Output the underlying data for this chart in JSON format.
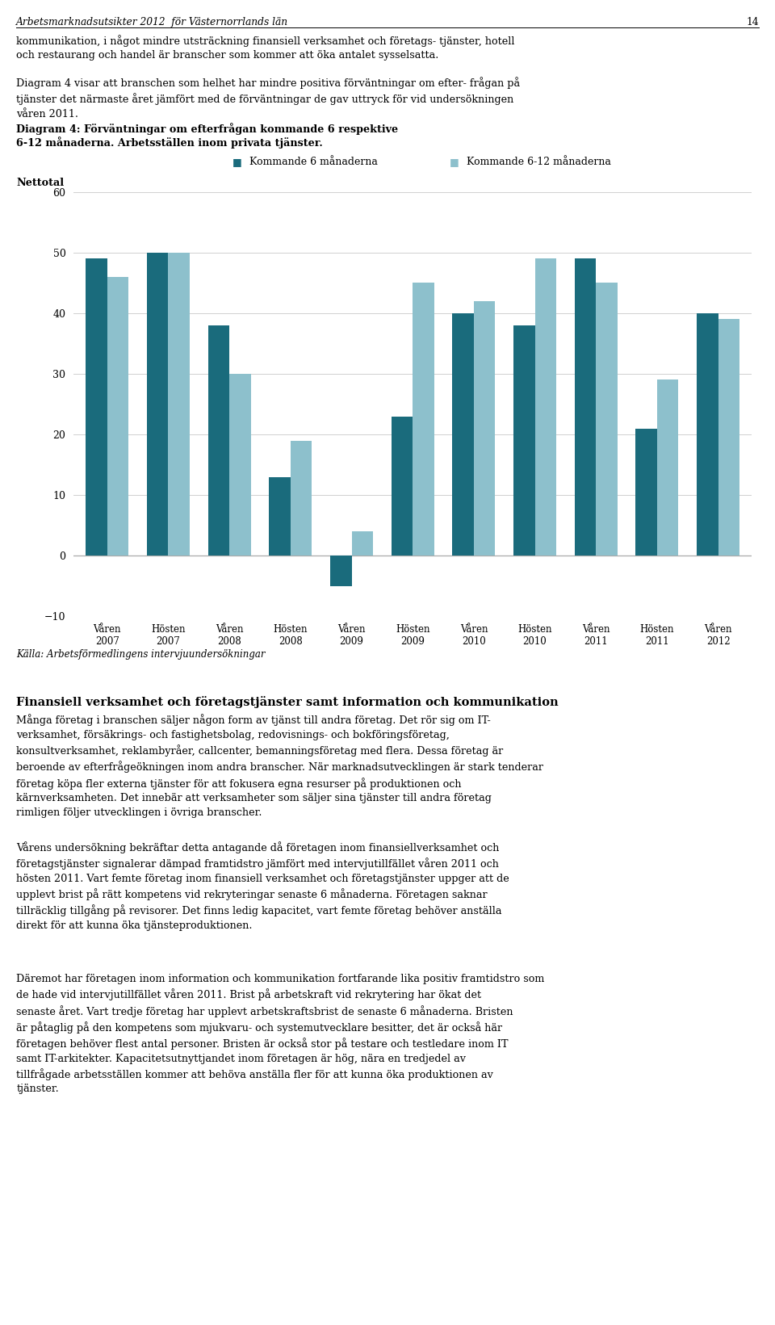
{
  "title_line1": "Diagram 4: Förväntningar om efterfrågan kommande 6 respektive",
  "title_line2": "6-12 månaderna. Arbetsställen inom privata tjänster.",
  "header": "Arbetsmarknadsutsikter 2012  för Västernorrlands län",
  "page_number": "14",
  "ylabel": "Nettotal",
  "source": "Källa: Arbetsförmedlingens intervjuundersökningar",
  "legend_dark": "Kommande 6 månaderna",
  "legend_light": "Kommande 6-12 månaderna",
  "categories": [
    "Våren\n2007",
    "Hösten\n2007",
    "Våren\n2008",
    "Hösten\n2008",
    "Våren\n2009",
    "Hösten\n2009",
    "Våren\n2010",
    "Hösten\n2010",
    "Våren\n2011",
    "Hösten\n2011",
    "Våren\n2012"
  ],
  "dark_values": [
    49,
    50,
    38,
    13,
    -5,
    23,
    40,
    38,
    49,
    21,
    40
  ],
  "light_values": [
    46,
    50,
    30,
    19,
    4,
    45,
    42,
    49,
    45,
    29,
    39
  ],
  "color_dark": "#1a6b7c",
  "color_light": "#8dc0cc",
  "ylim_min": -10,
  "ylim_max": 60,
  "yticks": [
    -10,
    0,
    10,
    20,
    30,
    40,
    50,
    60
  ],
  "bar_width": 0.35,
  "grid_color": "#d0d0d0",
  "bg_color": "#ffffff",
  "para0": "kommunikation, i något mindre utsträckning finansiell verksamhet och företags-tjänster, hotell och restaurang och handel är branscher som kommer att öka antalet sysselsatta.",
  "para1": "Diagram 4 visar att branschen som helhet har mindre positiva förväntningar om efterfrågan på tjänster det närmaste året jämfört med de förväntningar de gav uttryck för vid undersökningen våren 2011.",
  "section_heading": "Finansiell verksamhet och företagstjänster samt information och kommunikation",
  "para2": "Många företag i branschen säljer någon form av tjänst till andra företag. Det rör sig om IT-verksamhet, försäkrings- och fastighetsbolag, redovisnings- och bokföringsföretag, konsultverksamhet, reklambyråer, callcenter, bemanningsföretag med flera. Dessa företag är beroende av efterfrågeökningen inom andra branscher. När marknadsutvecklingen är stark tenderar företag köpa fler externa tjänster för att fokusera egna resurser på produktionen och kärnverksamheten. Det innebär att verksamheter som säljer sina tjänster till andra företag rimligen följer utvecklingen i övriga branscher.",
  "para3": "Vårens undersökning bekräftar detta antagande då företagen inom finansiellverksamhet och företagstjänster signalerar dämpad framtidstro jämfört med intervjutillfället våren 2011 och hösten 2011. Vart femte företag inom finansiell verksamhet och företagstjänster uppger att de upplevt brist på rätt kompetens vid rekryteringar senaste 6 månaderna. Företagen saknar tillräcklig tillgång på revisorer. Det finns ledig kapacitet, vart femte företag behöver anställa direkt för att kunna öka tjänsteproduktionen.",
  "para4": "Däremot har företagen inom information och kommunikation fortfarande lika positiv framtidstro som de hade vid intervjutillfället våren 2011. Brist på arbetskraft vid rekrytering har ökat det senaste året. Vart tredje företag har upplevt arbetskraftsbrist de senaste 6 månaderna. Bristen är påtaglig på den kompetens som mjukvaru- och systemutvecklare besitter, det är också här företagen behöver flest antal personer. Bristen är också stor på testare och testledare inom IT samt IT-arkitekter. Kapacitetsutnyttjandet inom företagen är hög, nära en tredjedel av tillfrågade arbetsställen kommer att behöva anställa fler för att kunna öka produktionen av tjänster."
}
